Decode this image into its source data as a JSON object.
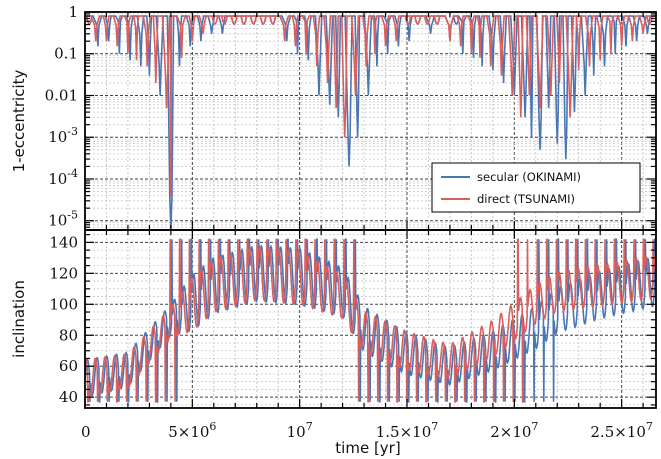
{
  "chart_data": [
    {
      "type": "line",
      "panel": "top",
      "ylabel": "1-eccentricity",
      "yscale": "log",
      "ylim": [
        6e-06,
        1.0
      ],
      "xlim": [
        0,
        26600000
      ],
      "grid": true,
      "legend_placement": "lower-right",
      "ytick_labels": [
        "1",
        "0.1",
        "0.01",
        "10^-3",
        "10^-4",
        "10^-5"
      ],
      "ytick_values": [
        1,
        0.1,
        0.01,
        0.001,
        0.0001,
        1e-05
      ],
      "series": [
        {
          "name": "secular (OKINAMI)",
          "color": "#4a76b4",
          "baseline": 0.8,
          "minima": [
            [
              600000,
              0.15
            ],
            [
              1100000,
              0.2
            ],
            [
              1600000,
              0.1
            ],
            [
              2100000,
              0.07
            ],
            [
              2600000,
              0.05
            ],
            [
              3000000,
              0.03
            ],
            [
              3500000,
              0.01
            ],
            [
              4000000,
              6e-06
            ],
            [
              4400000,
              0.05
            ],
            [
              4900000,
              0.15
            ],
            [
              5400000,
              0.2
            ],
            [
              5900000,
              0.3
            ],
            [
              6400000,
              0.3
            ],
            [
              9400000,
              0.2
            ],
            [
              9900000,
              0.1
            ],
            [
              10400000,
              0.07
            ],
            [
              10900000,
              0.01
            ],
            [
              11400000,
              0.006
            ],
            [
              11800000,
              0.003
            ],
            [
              12300000,
              0.0002
            ],
            [
              12700000,
              0.001
            ],
            [
              13200000,
              0.01
            ],
            [
              13600000,
              0.05
            ],
            [
              14100000,
              0.1
            ],
            [
              14600000,
              0.15
            ],
            [
              15100000,
              0.2
            ],
            [
              16100000,
              0.3
            ],
            [
              17000000,
              0.2
            ],
            [
              17600000,
              0.1
            ],
            [
              18100000,
              0.08
            ],
            [
              18500000,
              0.05
            ],
            [
              19000000,
              0.04
            ],
            [
              19500000,
              0.02
            ],
            [
              20000000,
              0.01
            ],
            [
              20500000,
              0.003
            ],
            [
              20800000,
              0.001
            ],
            [
              21200000,
              0.0005
            ],
            [
              21600000,
              0.005
            ],
            [
              22000000,
              0.0007
            ],
            [
              22400000,
              0.0003
            ],
            [
              22800000,
              0.004
            ],
            [
              23300000,
              0.01
            ],
            [
              23700000,
              0.03
            ],
            [
              24200000,
              0.05
            ],
            [
              24700000,
              0.1
            ],
            [
              25200000,
              0.15
            ],
            [
              25700000,
              0.2
            ],
            [
              26200000,
              0.3
            ]
          ]
        },
        {
          "name": "direct (TSUNAMI)",
          "color": "#d95f5f",
          "baseline": 0.8,
          "minima": [
            [
              500000,
              0.2
            ],
            [
              1000000,
              0.2
            ],
            [
              1500000,
              0.15
            ],
            [
              2000000,
              0.1
            ],
            [
              2400000,
              0.07
            ],
            [
              2900000,
              0.05
            ],
            [
              3300000,
              0.02
            ],
            [
              3800000,
              0.005
            ],
            [
              4000000,
              4e-05
            ],
            [
              4500000,
              0.08
            ],
            [
              5000000,
              0.2
            ],
            [
              5500000,
              0.3
            ],
            [
              9300000,
              0.2
            ],
            [
              9800000,
              0.15
            ],
            [
              10300000,
              0.1
            ],
            [
              10800000,
              0.05
            ],
            [
              11300000,
              0.02
            ],
            [
              11700000,
              0.005
            ],
            [
              12100000,
              0.001
            ],
            [
              12600000,
              0.01
            ],
            [
              13100000,
              0.05
            ],
            [
              13500000,
              0.1
            ],
            [
              14000000,
              0.15
            ],
            [
              14500000,
              0.2
            ],
            [
              17000000,
              0.2
            ],
            [
              17500000,
              0.15
            ],
            [
              18000000,
              0.1
            ],
            [
              18400000,
              0.08
            ],
            [
              18900000,
              0.05
            ],
            [
              19400000,
              0.03
            ],
            [
              19900000,
              0.01
            ],
            [
              20300000,
              0.003
            ],
            [
              20700000,
              0.01
            ],
            [
              21200000,
              0.005
            ],
            [
              21700000,
              0.01
            ],
            [
              22100000,
              0.02
            ],
            [
              22600000,
              0.003
            ],
            [
              23000000,
              0.04
            ],
            [
              23500000,
              0.05
            ],
            [
              24000000,
              0.07
            ],
            [
              24500000,
              0.1
            ],
            [
              25000000,
              0.15
            ],
            [
              25500000,
              0.2
            ],
            [
              26000000,
              0.3
            ]
          ]
        }
      ]
    },
    {
      "type": "line",
      "panel": "bottom",
      "ylabel": "inclination",
      "ylim": [
        33,
        148
      ],
      "xlim": [
        0,
        26600000
      ],
      "grid": true,
      "xlabel": "time [yr]",
      "xtick_labels": [
        "0",
        "5×10^6",
        "10^7",
        "1.5×10^7",
        "2×10^7",
        "2.5×10^7"
      ],
      "xtick_values": [
        0,
        5000000,
        10000000,
        15000000,
        20000000,
        25000000
      ],
      "ytick_values": [
        40,
        60,
        80,
        100,
        120,
        140
      ],
      "oscillation_period": 450000,
      "series": [
        {
          "name": "secular (OKINAMI)",
          "color": "#4a76b4",
          "mean": [
            [
              0,
              52
            ],
            [
              2000000,
              58
            ],
            [
              4000000,
              90
            ],
            [
              6000000,
              112
            ],
            [
              8000000,
              120
            ],
            [
              10000000,
              118
            ],
            [
              12000000,
              108
            ],
            [
              13000000,
              84
            ],
            [
              15000000,
              68
            ],
            [
              17000000,
              60
            ],
            [
              19000000,
              70
            ],
            [
              21000000,
              85
            ],
            [
              22000000,
              96
            ],
            [
              24000000,
              106
            ],
            [
              26600000,
              115
            ]
          ],
          "amp": [
            [
              0,
              12
            ],
            [
              4000000,
              10
            ],
            [
              5000000,
              18
            ],
            [
              10000000,
              18
            ],
            [
              12500000,
              15
            ],
            [
              14000000,
              14
            ],
            [
              17000000,
              12
            ],
            [
              20000000,
              13
            ],
            [
              23000000,
              15
            ],
            [
              26600000,
              16
            ]
          ],
          "flips_high": [
            [
              0,
              18000000
            ],
            [
              20200000,
              26600000
            ]
          ],
          "flips_low": [
            [
              0,
              4600000
            ],
            [
              12000000,
              26600000
            ]
          ]
        },
        {
          "name": "direct (TSUNAMI)",
          "color": "#d95f5f",
          "mean": [
            [
              0,
              52
            ],
            [
              2000000,
              57
            ],
            [
              4000000,
              88
            ],
            [
              6000000,
              112
            ],
            [
              8000000,
              120
            ],
            [
              10000000,
              117
            ],
            [
              12000000,
              105
            ],
            [
              13000000,
              82
            ],
            [
              15000000,
              70
            ],
            [
              17000000,
              63
            ],
            [
              19000000,
              78
            ],
            [
              21000000,
              100
            ],
            [
              22000000,
              108
            ],
            [
              24000000,
              112
            ],
            [
              26600000,
              118
            ]
          ],
          "amp": [
            [
              0,
              12
            ],
            [
              4000000,
              10
            ],
            [
              5000000,
              17
            ],
            [
              10000000,
              17
            ],
            [
              12000000,
              14
            ],
            [
              14000000,
              13
            ],
            [
              17000000,
              11
            ],
            [
              20000000,
              12
            ],
            [
              23000000,
              13
            ],
            [
              26600000,
              14
            ]
          ],
          "flips_high": [
            [
              0,
              17800000
            ],
            [
              19800000,
              26600000
            ]
          ],
          "flips_low": [
            [
              0,
              4600000
            ],
            [
              11600000,
              26600000
            ]
          ]
        }
      ]
    }
  ]
}
